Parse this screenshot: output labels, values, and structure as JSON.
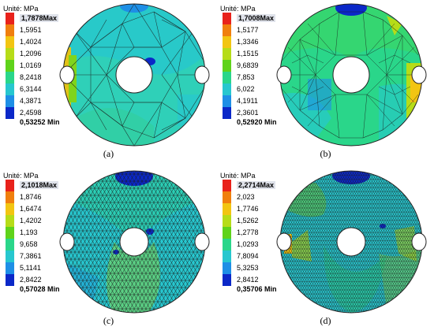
{
  "legend_colors": [
    "#e8221b",
    "#f07f0e",
    "#f2c512",
    "#b6dc18",
    "#5fd31b",
    "#2ad68a",
    "#27c7cf",
    "#1e8fe6",
    "#0b28c8"
  ],
  "panels": [
    {
      "label": "(a)",
      "legend_title": "Unité: MPa",
      "max_label": "1,7878Max",
      "ticks": [
        "1,5951",
        "1,4024",
        "1,2096",
        "1,0169",
        "8,2418",
        "6,3144",
        "4,3871",
        "2,4598"
      ],
      "min_label": "0,53252 Min"
    },
    {
      "label": "(b)",
      "legend_title": "Unité: MPa",
      "max_label": "1,7008Max",
      "ticks": [
        "1,5177",
        "1,3346",
        "1,1515",
        "9,6839",
        "7,853",
        "6,022",
        "4,1911",
        "2,3601"
      ],
      "min_label": "0,52920 Min"
    },
    {
      "label": "(c)",
      "legend_title": "Unité: MPa",
      "max_label": "2,1018Max",
      "ticks": [
        "1,8746",
        "1,6474",
        "1,4202",
        "1,193",
        "9,658",
        "7,3861",
        "5,1141",
        "2,8422"
      ],
      "min_label": "0,57028 Min"
    },
    {
      "label": "(d)",
      "legend_title": "Unité: MPa",
      "max_label": "2,2714Max",
      "ticks": [
        "2,023",
        "1,7746",
        "1,5262",
        "1,2778",
        "1,0293",
        "7,8094",
        "5,3253",
        "2,8412"
      ],
      "min_label": "0,35706 Min"
    }
  ]
}
